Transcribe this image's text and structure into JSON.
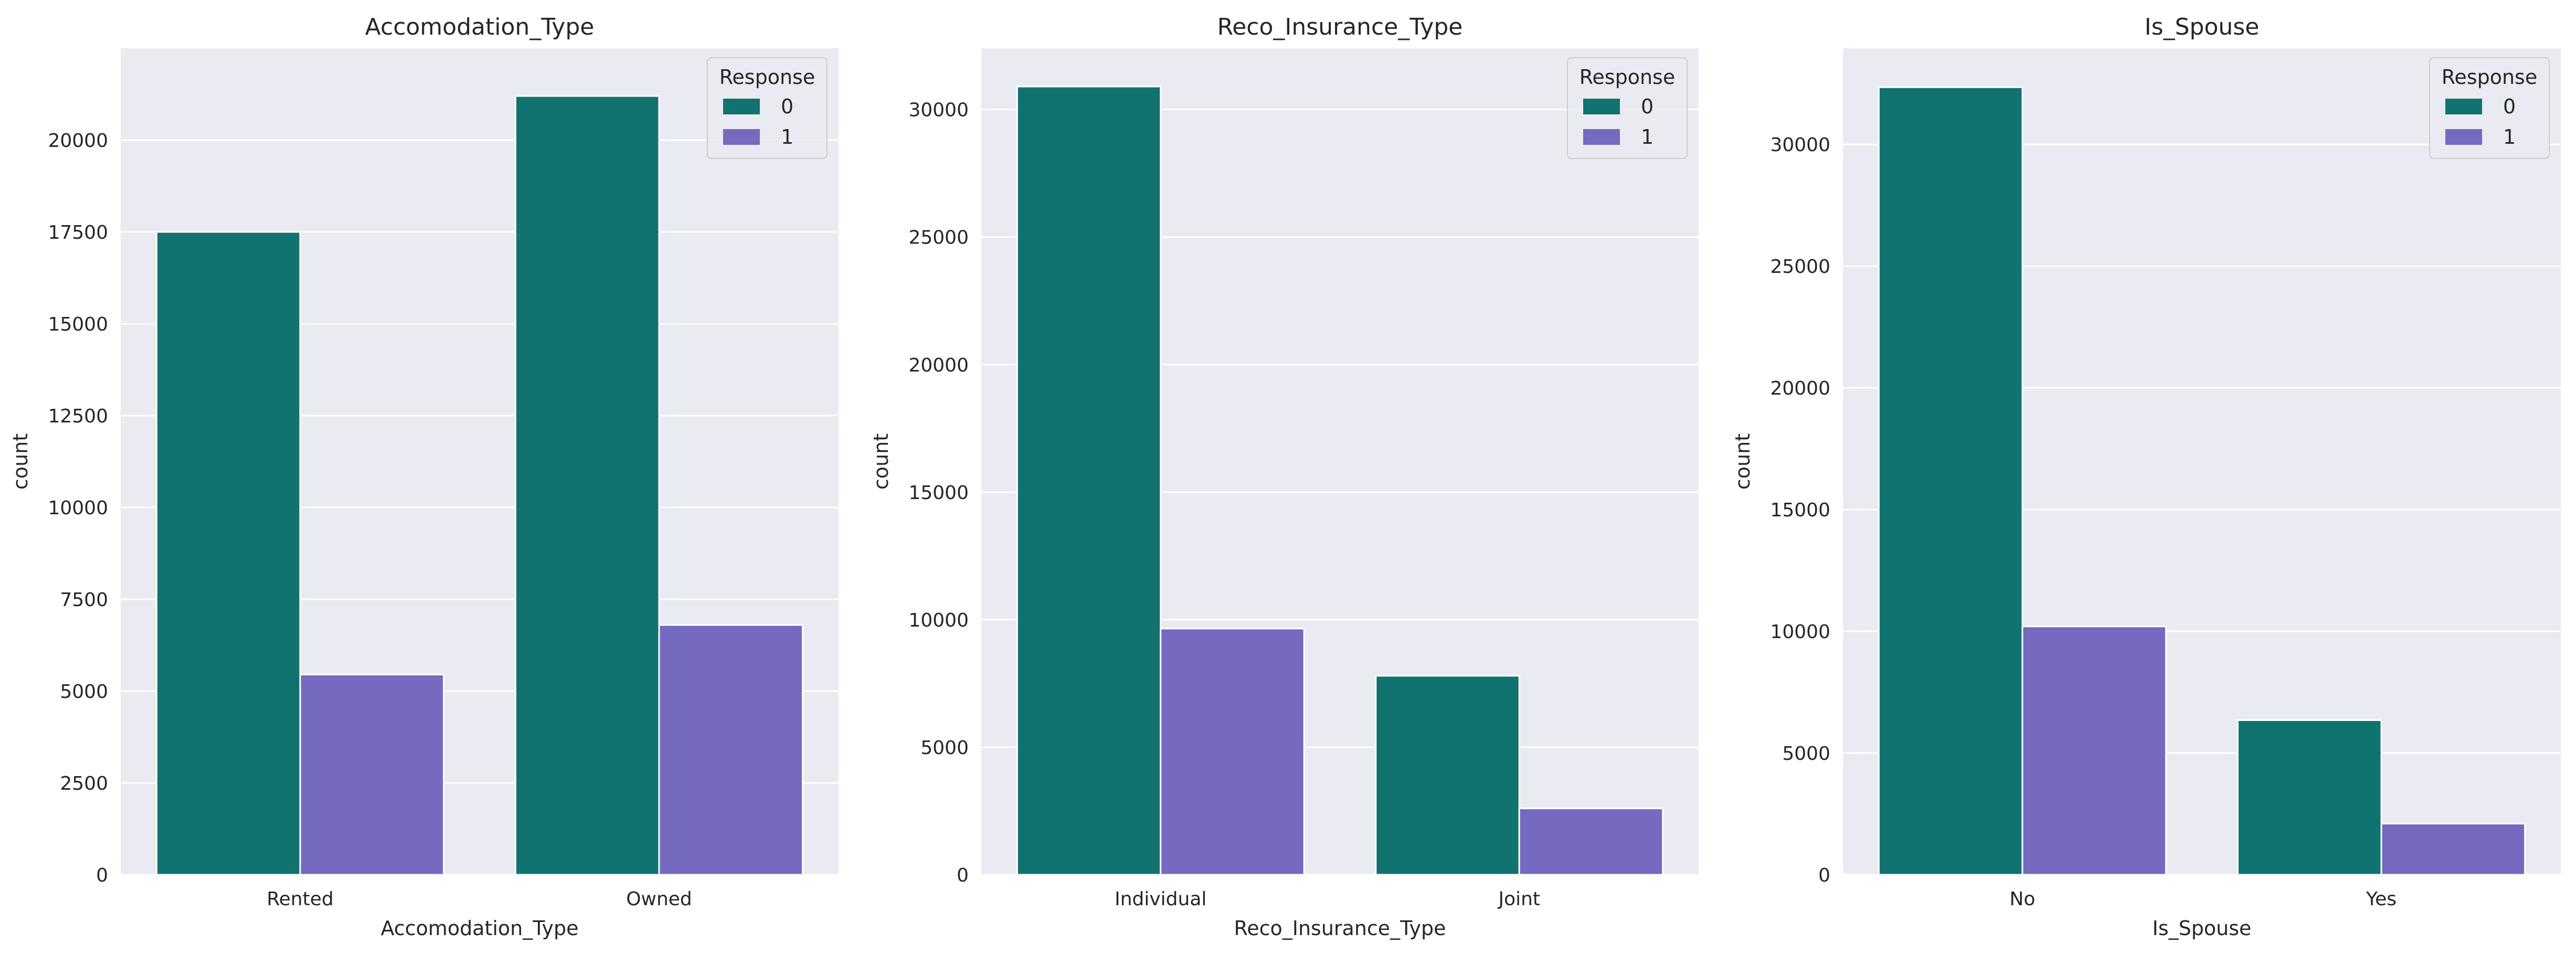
{
  "chart_data": [
    {
      "type": "bar",
      "title": "Accomodation_Type",
      "xlabel": "Accomodation_Type",
      "ylabel": "count",
      "categories": [
        "Rented",
        "Owned"
      ],
      "series": [
        {
          "name": "0",
          "values": [
            17500,
            21200
          ]
        },
        {
          "name": "1",
          "values": [
            5450,
            6800
          ]
        }
      ],
      "ylim": [
        0,
        22500
      ],
      "yticks": [
        0,
        2500,
        5000,
        7500,
        10000,
        12500,
        15000,
        17500,
        20000
      ],
      "ytick_labels": [
        "0",
        "2500",
        "5000",
        "7500",
        "10000",
        "12500",
        "15000",
        "17500",
        "20000"
      ],
      "legend_title": "Response",
      "legend_position": "top-right",
      "grid": true
    },
    {
      "type": "bar",
      "title": "Reco_Insurance_Type",
      "xlabel": "Reco_Insurance_Type",
      "ylabel": "count",
      "categories": [
        "Individual",
        "Joint"
      ],
      "series": [
        {
          "name": "0",
          "values": [
            30900,
            7800
          ]
        },
        {
          "name": "1",
          "values": [
            9650,
            2600
          ]
        }
      ],
      "ylim": [
        0,
        32400
      ],
      "yticks": [
        0,
        5000,
        10000,
        15000,
        20000,
        25000,
        30000
      ],
      "ytick_labels": [
        "0",
        "5000",
        "10000",
        "15000",
        "20000",
        "25000",
        "30000"
      ],
      "legend_title": "Response",
      "legend_position": "top-right",
      "grid": true
    },
    {
      "type": "bar",
      "title": "Is_Spouse",
      "xlabel": "Is_Spouse",
      "ylabel": "count",
      "categories": [
        "No",
        "Yes"
      ],
      "series": [
        {
          "name": "0",
          "values": [
            32350,
            6350
          ]
        },
        {
          "name": "1",
          "values": [
            10200,
            2100
          ]
        }
      ],
      "ylim": [
        0,
        33950
      ],
      "yticks": [
        0,
        5000,
        10000,
        15000,
        20000,
        25000,
        30000
      ],
      "ytick_labels": [
        "0",
        "5000",
        "10000",
        "15000",
        "20000",
        "25000",
        "30000"
      ],
      "legend_title": "Response",
      "legend_position": "top-right",
      "grid": true
    }
  ],
  "colors": {
    "series_0": "#117370",
    "series_1": "#7569c0",
    "plot_background": "#eaeaf2",
    "grid": "#ffffff",
    "text": "#262626"
  }
}
